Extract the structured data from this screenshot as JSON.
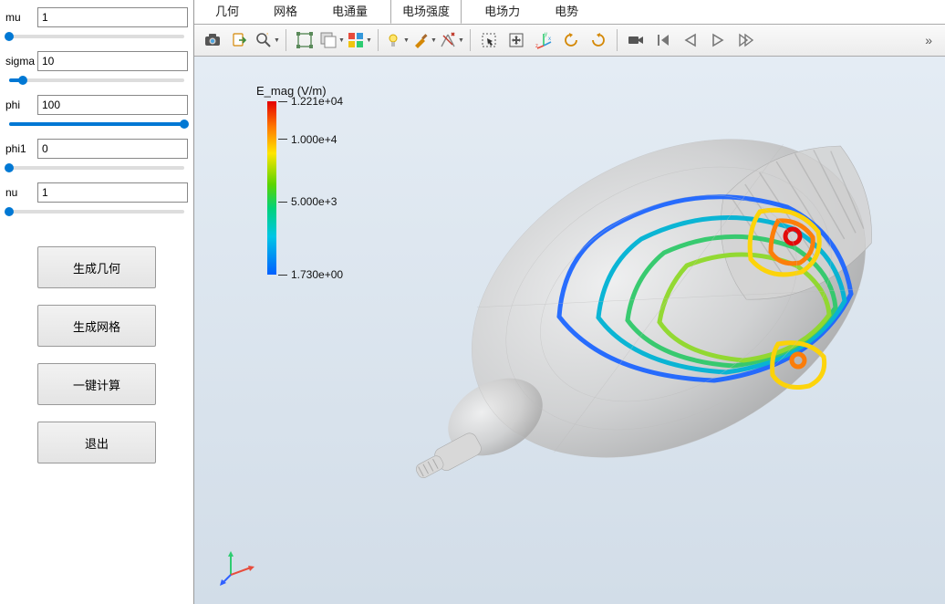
{
  "params": [
    {
      "key": "mu",
      "label": "mu",
      "value": "1",
      "pct": 0
    },
    {
      "key": "sigma",
      "label": "sigma",
      "value": "10",
      "pct": 8
    },
    {
      "key": "phi",
      "label": "phi",
      "value": "100",
      "pct": 100
    },
    {
      "key": "phi1",
      "label": "phi1",
      "value": "0",
      "pct": 0
    },
    {
      "key": "nu",
      "label": "nu",
      "value": "1",
      "pct": 0
    }
  ],
  "buttons": {
    "gen_geometry": "生成几何",
    "gen_mesh": "生成网格",
    "compute": "一键计算",
    "exit": "退出"
  },
  "tabs": [
    {
      "key": "geometry",
      "label": "几何",
      "active": false
    },
    {
      "key": "mesh",
      "label": "网格",
      "active": false
    },
    {
      "key": "flux",
      "label": "电通量",
      "active": false
    },
    {
      "key": "efield",
      "label": "电场强度",
      "active": true
    },
    {
      "key": "eforce",
      "label": "电场力",
      "active": false
    },
    {
      "key": "potential",
      "label": "电势",
      "active": false
    }
  ],
  "legend": {
    "title": "E_mag (V/m)",
    "ticks": [
      {
        "label": "1.221e+04",
        "pos": 0
      },
      {
        "label": "1.000e+4",
        "pos": 22
      },
      {
        "label": "5.000e+3",
        "pos": 58
      },
      {
        "label": "1.730e+00",
        "pos": 100
      }
    ],
    "colors": {
      "max": "#e40000",
      "mid_hi": "#ffe600",
      "mid": "#5bd400",
      "mid_lo": "#00c6e6",
      "min": "#0060ff"
    }
  },
  "toolbar_icons": {
    "camera": "camera-icon",
    "export": "export-icon",
    "zoom": "zoom-icon",
    "select_box": "select-box-icon",
    "select_window": "select-window-icon",
    "multi_select": "multi-select-icon",
    "light": "light-icon",
    "brush": "brush-icon",
    "measure": "measure-icon",
    "pan": "pan-select-icon",
    "move": "move-icon",
    "axes": "axes-icon",
    "rotate_ccw": "rotate-ccw-icon",
    "rotate_cw": "rotate-cw-icon",
    "video": "video-icon",
    "first": "first-frame-icon",
    "prev": "prev-frame-icon",
    "play": "play-icon",
    "next": "next-frame-icon"
  },
  "overflow": "»"
}
